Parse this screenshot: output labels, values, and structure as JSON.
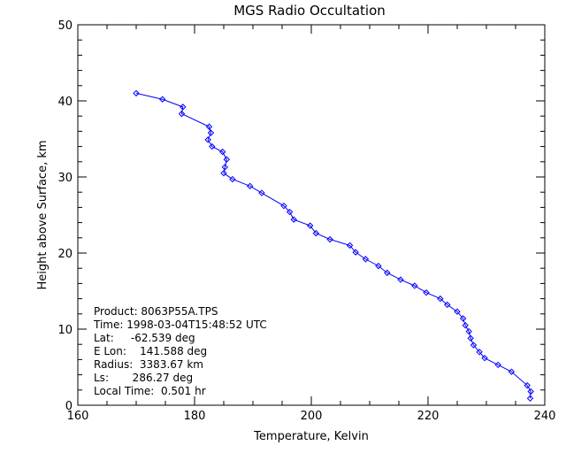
{
  "chart_data": {
    "type": "line",
    "title": "MGS Radio Occultation",
    "xlabel": "Temperature, Kelvin",
    "ylabel": "Height above Surface, km",
    "xlim": [
      160,
      240
    ],
    "ylim": [
      0,
      50
    ],
    "xticks": [
      "160",
      "180",
      "200",
      "220",
      "240"
    ],
    "yticks": [
      "0",
      "10",
      "20",
      "30",
      "40",
      "50"
    ],
    "grid": false,
    "line_color": "#0000ff",
    "marker": "diamond",
    "series": [
      {
        "x": [
          170.0,
          174.5,
          178.0,
          177.8,
          182.5,
          182.8,
          182.3,
          183.0,
          184.8,
          185.5,
          185.2,
          185.0,
          186.5,
          189.5,
          191.5,
          195.3,
          196.3,
          197.0,
          199.8,
          200.8,
          203.2,
          206.6,
          207.6,
          209.3,
          211.5,
          213.0,
          215.3,
          217.7,
          219.7,
          222.1,
          223.3,
          225.0,
          226.0,
          226.4,
          227.0,
          227.3,
          227.8,
          228.8,
          229.7,
          232.0,
          234.3,
          237.0,
          237.6,
          237.5
        ],
        "y": [
          41.0,
          40.2,
          39.2,
          38.3,
          36.6,
          35.8,
          34.9,
          34.0,
          33.3,
          32.3,
          31.3,
          30.5,
          29.7,
          28.8,
          27.9,
          26.2,
          25.4,
          24.4,
          23.6,
          22.6,
          21.8,
          21.0,
          20.1,
          19.2,
          18.3,
          17.4,
          16.5,
          15.7,
          14.8,
          14.0,
          13.2,
          12.3,
          11.4,
          10.5,
          9.7,
          8.8,
          7.9,
          7.0,
          6.2,
          5.3,
          4.4,
          2.6,
          1.8,
          0.9
        ]
      }
    ],
    "annotations": [
      "Product: 8063P55A.TPS",
      "Time: 1998-03-04T15:48:52 UTC",
      "Lat:     -62.539 deg",
      "E Lon:    141.588 deg",
      "Radius:  3383.67 km",
      "Ls:       286.27 deg",
      "Local Time:  0.501 hr"
    ]
  }
}
